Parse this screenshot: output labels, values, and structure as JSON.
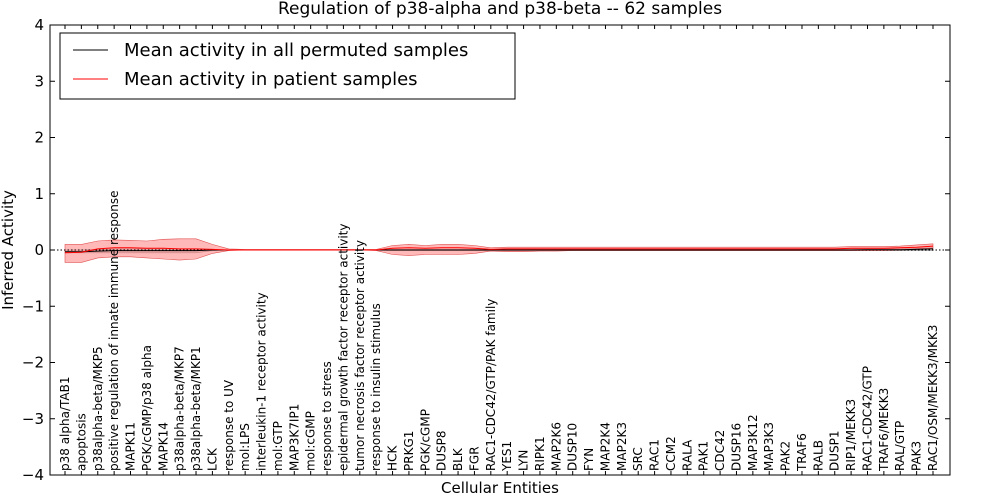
{
  "chart_data": {
    "type": "line",
    "title": "Regulation of p38-alpha and p38-beta -- 62 samples",
    "xlabel": "Cellular Entities",
    "ylabel": "Inferred Activity",
    "ylim": [
      -4,
      4
    ],
    "yticks": [
      4,
      3,
      2,
      1,
      0,
      -1,
      -2,
      -3,
      -4
    ],
    "ytick_labels": [
      "4",
      "3",
      "2",
      "1",
      "0",
      "−1",
      "−2",
      "−3",
      "−4"
    ],
    "legend_position": "top-left",
    "categories": [
      "p38 alpha/TAB1",
      "apoptosis",
      "p38alpha-beta/MKP5",
      "positive regulation of innate immune response",
      "MAPK11",
      "PGK/cGMP/p38 alpha",
      "MAPK14",
      "p38alpha-beta/MKP7",
      "p38alpha-beta/MKP1",
      "LCK",
      "response to UV",
      "mol:LPS",
      "interleukin-1 receptor activity",
      "mol:GTP",
      "MAP3K7IP1",
      "mol:cGMP",
      "response to stress",
      "epidermal growth factor receptor activity",
      "tumor necrosis factor receptor activity",
      "response to insulin stimulus",
      "HCK",
      "PRKG1",
      "PGK/cGMP",
      "DUSP8",
      "BLK",
      "FGR",
      "RAC1-CDC42/GTP/PAK family",
      "YES1",
      "LYN",
      "RIPK1",
      "MAP2K6",
      "DUSP10",
      "FYN",
      "MAP2K4",
      "MAP2K3",
      "SRC",
      "RAC1",
      "CCM2",
      "RALA",
      "PAK1",
      "CDC42",
      "DUSP16",
      "MAP3K12",
      "MAP3K3",
      "PAK2",
      "TRAF6",
      "RALB",
      "DUSP1",
      "RIP1/MEKK3",
      "RAC1-CDC42/GTP",
      "TRAF6/MEKK3",
      "RAL/GTP",
      "PAK3",
      "RAC1/OSM/MEKK3/MKK3"
    ],
    "series": [
      {
        "name": "Mean activity in all permuted samples",
        "color": "#000000",
        "values": [
          -0.03,
          -0.03,
          -0.02,
          -0.01,
          -0.01,
          -0.01,
          -0.01,
          -0.01,
          -0.01,
          0,
          0,
          0,
          0,
          0,
          0,
          0,
          0,
          0,
          0,
          0,
          0,
          0,
          0,
          0,
          0,
          0,
          0,
          0,
          0,
          0,
          0,
          0,
          0,
          0,
          0,
          0,
          0,
          0,
          0,
          0,
          0,
          0,
          0,
          0,
          0,
          0,
          0,
          0,
          0,
          0.005,
          0.005,
          0.005,
          0.01,
          0.02
        ],
        "band_low": [
          -0.05,
          -0.05,
          -0.05,
          -0.05,
          -0.05,
          -0.05,
          -0.05,
          -0.05,
          -0.05,
          -0.01,
          0,
          0,
          0,
          0,
          0,
          0,
          0,
          0,
          0,
          0,
          -0.01,
          -0.01,
          -0.01,
          -0.01,
          -0.01,
          -0.01,
          -0.01,
          -0.01,
          -0.01,
          -0.01,
          -0.01,
          -0.01,
          -0.01,
          -0.01,
          -0.01,
          -0.01,
          -0.01,
          -0.01,
          -0.01,
          -0.01,
          -0.01,
          -0.01,
          -0.01,
          -0.01,
          -0.01,
          -0.01,
          -0.01,
          -0.01,
          -0.01,
          -0.01,
          -0.01,
          -0.01,
          -0.01,
          -0.01
        ],
        "band_high": [
          0,
          0,
          0.01,
          0.02,
          0.02,
          0.02,
          0.02,
          0.02,
          0.02,
          0.01,
          0,
          0,
          0,
          0,
          0,
          0,
          0,
          0,
          0,
          0,
          0.01,
          0.01,
          0.01,
          0.01,
          0.01,
          0.01,
          0.01,
          0.01,
          0.01,
          0.01,
          0.01,
          0.01,
          0.01,
          0.01,
          0.01,
          0.01,
          0.01,
          0.01,
          0.01,
          0.01,
          0.01,
          0.01,
          0.01,
          0.01,
          0.01,
          0.01,
          0.01,
          0.01,
          0.02,
          0.02,
          0.02,
          0.02,
          0.03,
          0.04
        ]
      },
      {
        "name": "Mean activity in patient samples",
        "color": "#ff0000",
        "band_color": "#ff8080",
        "values": [
          -0.05,
          -0.04,
          0.02,
          0.04,
          0.04,
          0.03,
          0.03,
          0.02,
          0.02,
          0.01,
          0,
          0,
          0,
          0,
          0,
          0,
          0,
          0,
          0,
          0,
          0.03,
          0.04,
          0.03,
          0.04,
          0.04,
          0.03,
          0.01,
          0.02,
          0.02,
          0.02,
          0.02,
          0.02,
          0.02,
          0.02,
          0.02,
          0.02,
          0.02,
          0.02,
          0.02,
          0.02,
          0.02,
          0.02,
          0.02,
          0.02,
          0.02,
          0.02,
          0.02,
          0.02,
          0.03,
          0.03,
          0.03,
          0.04,
          0.05,
          0.07
        ],
        "band_low": [
          -0.22,
          -0.22,
          -0.14,
          -0.12,
          -0.12,
          -0.14,
          -0.16,
          -0.18,
          -0.16,
          -0.06,
          -0.01,
          0,
          0,
          0,
          0,
          0,
          0,
          0,
          0,
          -0.01,
          -0.08,
          -0.1,
          -0.08,
          -0.08,
          -0.08,
          -0.06,
          -0.02,
          -0.03,
          -0.03,
          -0.02,
          -0.02,
          -0.01,
          -0.01,
          -0.01,
          -0.01,
          -0.01,
          -0.01,
          -0.01,
          -0.01,
          -0.01,
          -0.01,
          -0.01,
          -0.01,
          -0.01,
          -0.01,
          -0.01,
          -0.01,
          -0.01,
          -0.01,
          -0.01,
          -0.01,
          0,
          0.02,
          0.03
        ],
        "band_high": [
          0.1,
          0.1,
          0.16,
          0.18,
          0.17,
          0.16,
          0.19,
          0.2,
          0.2,
          0.1,
          0.02,
          0.01,
          0.01,
          0.01,
          0.01,
          0.01,
          0.01,
          0.01,
          0.01,
          0.01,
          0.08,
          0.1,
          0.08,
          0.1,
          0.1,
          0.08,
          0.04,
          0.05,
          0.05,
          0.05,
          0.05,
          0.05,
          0.05,
          0.05,
          0.05,
          0.05,
          0.05,
          0.05,
          0.05,
          0.05,
          0.05,
          0.05,
          0.05,
          0.05,
          0.05,
          0.05,
          0.05,
          0.05,
          0.06,
          0.06,
          0.06,
          0.07,
          0.09,
          0.11
        ]
      }
    ]
  }
}
